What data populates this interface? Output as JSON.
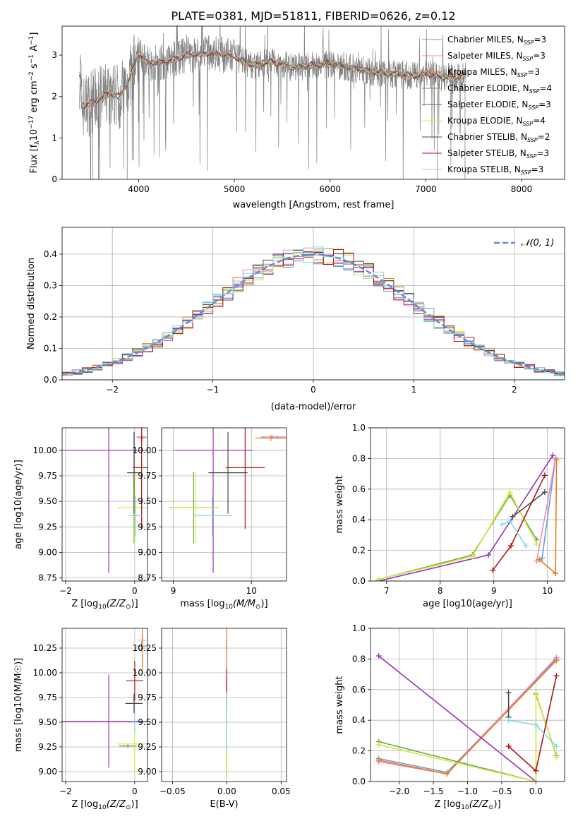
{
  "figure_title": "PLATE=0381, MJD=51811, FIBERID=0626, z=0.12",
  "colors": {
    "chabrier_miles": "#6a9bd8",
    "salpeter_miles": "#e98cb8",
    "kroupa_miles": "#f07a1a",
    "chabrier_elodie": "#6aa84f",
    "salpeter_elodie": "#9b30b8",
    "kroupa_elodie": "#d8e83a",
    "chabrier_stelib": "#4a4a4a",
    "salpeter_stelib": "#b01414",
    "kroupa_stelib": "#86d8e8",
    "data_spectrum": "#808080",
    "normal_curve": "#5b8fd6"
  },
  "chart_data": [
    {
      "id": "spectrum",
      "type": "line",
      "xlabel": "wavelength [Angstrom, rest frame]",
      "ylabel": "Flux [f_λ 10^-17 erg cm^-2 s^-1 A^-1]",
      "xlim": [
        3200,
        8450
      ],
      "ylim": [
        0,
        3.7
      ],
      "xticks": [
        4000,
        5000,
        6000,
        7000,
        8000
      ],
      "yticks": [
        0,
        1,
        2,
        3
      ],
      "legend_position": "top-right",
      "legend": [
        {
          "key": "chabrier_miles",
          "label": "Chabrier MILES, N",
          "sub": "SSP",
          "tail": "=3"
        },
        {
          "key": "salpeter_miles",
          "label": "Salpeter MILES, N",
          "sub": "SSP",
          "tail": "=3"
        },
        {
          "key": "kroupa_miles",
          "label": "Kroupa MILES, N",
          "sub": "SSP",
          "tail": "=3"
        },
        {
          "key": "chabrier_elodie",
          "label": "Chabrier ELODIE, N",
          "sub": "SSP",
          "tail": "=4"
        },
        {
          "key": "salpeter_elodie",
          "label": "Salpeter ELODIE, N",
          "sub": "SSP",
          "tail": "=3"
        },
        {
          "key": "kroupa_elodie",
          "label": "Kroupa ELODIE, N",
          "sub": "SSP",
          "tail": "=4"
        },
        {
          "key": "chabrier_stelib",
          "label": "Chabrier STELIB, N",
          "sub": "SSP",
          "tail": "=2"
        },
        {
          "key": "salpeter_stelib",
          "label": "Salpeter STELIB, N",
          "sub": "SSP",
          "tail": "=3"
        },
        {
          "key": "kroupa_stelib",
          "label": "Kroupa STELIB, N",
          "sub": "SSP",
          "tail": "=3"
        }
      ],
      "continuum_points": [
        [
          3400,
          1.75
        ],
        [
          3600,
          1.95
        ],
        [
          3700,
          2.1
        ],
        [
          3800,
          2.0
        ],
        [
          3900,
          2.4
        ],
        [
          4000,
          3.05
        ],
        [
          4100,
          2.8
        ],
        [
          4300,
          2.85
        ],
        [
          4500,
          3.0
        ],
        [
          4800,
          3.05
        ],
        [
          5000,
          2.95
        ],
        [
          5200,
          2.75
        ],
        [
          5400,
          2.85
        ],
        [
          5600,
          2.7
        ],
        [
          5800,
          2.75
        ],
        [
          6000,
          2.8
        ],
        [
          6300,
          2.65
        ],
        [
          6600,
          2.55
        ],
        [
          6900,
          2.5
        ],
        [
          7000,
          2.55
        ],
        [
          7200,
          2.45
        ],
        [
          7400,
          2.5
        ]
      ]
    },
    {
      "id": "residuals",
      "type": "line",
      "xlabel": "(data-model)/error",
      "ylabel": "Normed distribution",
      "xlim": [
        -2.5,
        2.5
      ],
      "ylim": [
        0,
        0.485
      ],
      "xticks": [
        -2,
        -1,
        0,
        1,
        2
      ],
      "xtick_labels": [
        "−2",
        "−1",
        "0",
        "1",
        "2"
      ],
      "yticks": [
        0.0,
        0.1,
        0.2,
        0.3,
        0.4
      ],
      "ytick_labels": [
        "0.0",
        "0.1",
        "0.2",
        "0.3",
        "0.4"
      ],
      "grid": true,
      "legend_position": "top-right",
      "normal_legend": "𝒩(0, 1)",
      "bin_width": 0.1
    },
    {
      "id": "age_vs_Z",
      "type": "scatter",
      "xlabel_prefix": "Z [log",
      "xlabel_expr": "(Z/Z",
      "xlabel_suffix": ")]",
      "ylabel": "age  [log10(age/yr)]",
      "xlim": [
        -2.1,
        0.37
      ],
      "ylim": [
        8.72,
        10.22
      ],
      "xticks": [
        -2,
        0
      ],
      "xtick_labels": [
        "−2",
        "0"
      ],
      "yticks": [
        8.75,
        9.0,
        9.25,
        9.5,
        9.75,
        10.0
      ],
      "ytick_labels": [
        "8.75",
        "9.00",
        "9.25",
        "9.50",
        "9.75",
        "10.00"
      ],
      "grid": true,
      "points": [
        {
          "key": "chabrier_miles",
          "x": 0.2,
          "xerr": 0.15,
          "y": 10.13,
          "yerr": 0.02
        },
        {
          "key": "salpeter_miles",
          "x": 0.22,
          "xerr": 0.15,
          "y": 10.13,
          "yerr": 0.02
        },
        {
          "key": "kroupa_miles",
          "x": 0.2,
          "xerr": 0.1,
          "y": 10.12,
          "yerr": 0.03
        },
        {
          "key": "chabrier_elodie",
          "x": -0.02,
          "xerr": 0.03,
          "y": 9.44,
          "yerr": 0.35
        },
        {
          "key": "salpeter_elodie",
          "x": -0.75,
          "xerr": 1.35,
          "y": 10.0,
          "yerr": 1.2
        },
        {
          "key": "kroupa_elodie",
          "x": 0.0,
          "xerr": 0.5,
          "y": 9.44,
          "yerr": 0.35
        },
        {
          "key": "chabrier_stelib",
          "x": -0.02,
          "xerr": 0.2,
          "y": 9.78,
          "yerr": 0.4
        },
        {
          "key": "salpeter_stelib",
          "x": 0.2,
          "xerr": 0.25,
          "y": 9.83,
          "yerr": 0.6
        },
        {
          "key": "kroupa_stelib",
          "x": 0.02,
          "xerr": 0.2,
          "y": 9.36,
          "yerr": 0.2
        }
      ]
    },
    {
      "id": "age_vs_mass",
      "type": "scatter",
      "xlabel_prefix": "mass [log",
      "xlabel_expr": "(M/M",
      "xlabel_suffix": ")]",
      "xlim": [
        8.85,
        10.45
      ],
      "ylim": [
        8.72,
        10.22
      ],
      "xticks": [
        9,
        10
      ],
      "xtick_labels": [
        "9",
        "10"
      ],
      "yticks": [
        8.75,
        9.0,
        9.25,
        9.5,
        9.75,
        10.0
      ],
      "ytick_labels": [
        "8.75",
        "9.00",
        "9.25",
        "9.50",
        "9.75",
        "10.00"
      ],
      "grid": true,
      "points": [
        {
          "key": "chabrier_miles",
          "x": 10.27,
          "xerr": 0.15,
          "y": 10.13,
          "yerr": 0.02
        },
        {
          "key": "salpeter_miles",
          "x": 10.33,
          "xerr": 0.15,
          "y": 10.13,
          "yerr": 0.02
        },
        {
          "key": "kroupa_miles",
          "x": 10.25,
          "xerr": 0.2,
          "y": 10.12,
          "yerr": 0.03
        },
        {
          "key": "chabrier_elodie",
          "x": 9.26,
          "xerr": 0.3,
          "y": 9.44,
          "yerr": 0.35
        },
        {
          "key": "salpeter_elodie",
          "x": 9.51,
          "xerr": 0.5,
          "y": 10.0,
          "yerr": 1.2
        },
        {
          "key": "kroupa_elodie",
          "x": 9.28,
          "xerr": 0.3,
          "y": 9.44,
          "yerr": 0.35
        },
        {
          "key": "chabrier_stelib",
          "x": 9.7,
          "xerr": 0.25,
          "y": 9.78,
          "yerr": 0.4
        },
        {
          "key": "salpeter_stelib",
          "x": 9.92,
          "xerr": 0.25,
          "y": 9.83,
          "yerr": 0.6
        },
        {
          "key": "kroupa_stelib",
          "x": 9.5,
          "xerr": 0.25,
          "y": 9.36,
          "yerr": 0.2
        }
      ]
    },
    {
      "id": "weight_vs_age",
      "type": "line",
      "xlabel": "age  [log10(age/yr)]",
      "ylabel": "mass weight",
      "xlim": [
        6.7,
        10.32
      ],
      "ylim": [
        0,
        1.0
      ],
      "xticks": [
        7,
        8,
        9,
        10
      ],
      "xtick_labels": [
        "7",
        "8",
        "9",
        "10"
      ],
      "yticks": [
        0.0,
        0.2,
        0.4,
        0.6,
        0.8,
        1.0
      ],
      "ytick_labels": [
        "0.0",
        "0.2",
        "0.4",
        "0.6",
        "0.8",
        "1.0"
      ],
      "grid": true,
      "series": [
        {
          "key": "chabrier_miles",
          "x": [
            9.9,
            10.15
          ],
          "y": [
            0.15,
            0.8
          ]
        },
        {
          "key": "salpeter_miles",
          "x": [
            9.8,
            10.15
          ],
          "y": [
            0.13,
            0.8
          ]
        },
        {
          "key": "kroupa_miles",
          "x": [
            9.85,
            10.15,
            10.17
          ],
          "y": [
            0.14,
            0.05,
            0.79
          ]
        },
        {
          "key": "chabrier_elodie",
          "x": [
            6.85,
            8.6,
            9.3,
            9.8
          ],
          "y": [
            0.01,
            0.17,
            0.56,
            0.27
          ]
        },
        {
          "key": "salpeter_elodie",
          "x": [
            6.85,
            8.9,
            10.1
          ],
          "y": [
            0.0,
            0.17,
            0.82
          ]
        },
        {
          "key": "kroupa_elodie",
          "x": [
            6.85,
            8.6,
            9.3,
            9.8
          ],
          "y": [
            0.01,
            0.16,
            0.58,
            0.24
          ]
        },
        {
          "key": "chabrier_stelib",
          "x": [
            9.35,
            9.95
          ],
          "y": [
            0.42,
            0.58
          ]
        },
        {
          "key": "salpeter_stelib",
          "x": [
            8.98,
            9.32,
            9.95
          ],
          "y": [
            0.07,
            0.23,
            0.69
          ]
        },
        {
          "key": "kroupa_stelib",
          "x": [
            9.15,
            9.3,
            9.6
          ],
          "y": [
            0.37,
            0.39,
            0.23
          ]
        }
      ]
    },
    {
      "id": "mass_vs_Z",
      "type": "scatter",
      "xlabel_prefix": "Z [log",
      "xlabel_expr": "(Z/Z",
      "xlabel_suffix": ")]",
      "ylabel": "mass [log10(M/M☉)]",
      "xlim": [
        -2.1,
        0.37
      ],
      "ylim": [
        8.9,
        10.45
      ],
      "xticks": [
        -2,
        0
      ],
      "xtick_labels": [
        "−2",
        "0"
      ],
      "yticks": [
        9.0,
        9.25,
        9.5,
        9.75,
        10.0,
        10.25
      ],
      "ytick_labels": [
        "9.00",
        "9.25",
        "9.50",
        "9.75",
        "10.00",
        "10.25"
      ],
      "grid": true,
      "points": [
        {
          "key": "chabrier_miles",
          "x": 0.2,
          "xerr": 0.15,
          "y": 10.27,
          "yerr": 0.05
        },
        {
          "key": "salpeter_miles",
          "x": 0.22,
          "xerr": 0.1,
          "y": 10.33,
          "yerr": 0.05
        },
        {
          "key": "kroupa_miles",
          "x": 0.22,
          "xerr": 0.06,
          "y": 10.25,
          "yerr": 0.25
        },
        {
          "key": "chabrier_elodie",
          "x": -0.2,
          "xerr": 0.25,
          "y": 9.26,
          "yerr": 0.02
        },
        {
          "key": "salpeter_elodie",
          "x": -0.75,
          "xerr": 1.35,
          "y": 9.51,
          "yerr": 0.47
        },
        {
          "key": "kroupa_elodie",
          "x": 0.0,
          "xerr": 0.5,
          "y": 9.28,
          "yerr": 0.3
        },
        {
          "key": "chabrier_stelib",
          "x": -0.02,
          "xerr": 0.25,
          "y": 9.69,
          "yerr": 0.1
        },
        {
          "key": "salpeter_stelib",
          "x": 0.0,
          "xerr": 0.25,
          "y": 9.92,
          "yerr": 0.2
        },
        {
          "key": "kroupa_stelib",
          "x": 0.0,
          "xerr": 0.2,
          "y": 9.5,
          "yerr": 0.1
        }
      ]
    },
    {
      "id": "mass_vs_ebv",
      "type": "scatter",
      "xlabel": "E(B-V)",
      "xlim": [
        -0.06,
        0.055
      ],
      "ylim": [
        8.9,
        10.45
      ],
      "xticks": [
        -0.05,
        0.0,
        0.05
      ],
      "xtick_labels": [
        "−0.05",
        "0.00",
        "0.05"
      ],
      "yticks": [
        9.0,
        9.25,
        9.5,
        9.75,
        10.0,
        10.25
      ],
      "ytick_labels": [
        "9.00",
        "9.25",
        "9.50",
        "9.75",
        "10.00",
        "10.25"
      ],
      "grid": true,
      "points": [
        {
          "key": "chabrier_miles",
          "x": 0.0,
          "xerr": 0.0005,
          "y": 10.27,
          "yerr": 0.05
        },
        {
          "key": "salpeter_miles",
          "x": 0.0,
          "xerr": 0.0005,
          "y": 10.33,
          "yerr": 0.05
        },
        {
          "key": "kroupa_miles",
          "x": 0.0,
          "xerr": 0.0005,
          "y": 10.25,
          "yerr": 0.25
        },
        {
          "key": "chabrier_elodie",
          "x": 0.0,
          "xerr": 0.0005,
          "y": 9.26,
          "yerr": 0.3
        },
        {
          "key": "salpeter_elodie",
          "x": 0.0,
          "xerr": 0.0005,
          "y": 9.51,
          "yerr": 0.47
        },
        {
          "key": "kroupa_elodie",
          "x": 0.0,
          "xerr": 0.0005,
          "y": 9.28,
          "yerr": 0.3
        },
        {
          "key": "chabrier_stelib",
          "x": 0.0,
          "xerr": 0.0005,
          "y": 9.69,
          "yerr": 0.1
        },
        {
          "key": "salpeter_stelib",
          "x": 0.0,
          "xerr": 0.0005,
          "y": 9.92,
          "yerr": 0.12
        },
        {
          "key": "kroupa_stelib",
          "x": 0.0,
          "xerr": 0.0005,
          "y": 9.5,
          "yerr": 0.3
        }
      ]
    },
    {
      "id": "weight_vs_Z",
      "type": "line",
      "xlabel_prefix": "Z [log",
      "xlabel_expr": "(Z/Z",
      "xlabel_suffix": ")]",
      "ylabel": "mass weight",
      "xlim": [
        -2.42,
        0.42
      ],
      "ylim": [
        0,
        1.0
      ],
      "xticks": [
        -2.0,
        -1.5,
        -1.0,
        -0.5,
        0.0
      ],
      "xtick_labels": [
        "−2.0",
        "−1.5",
        "−1.0",
        "−0.5",
        "0.0"
      ],
      "yticks": [
        0.0,
        0.2,
        0.4,
        0.6,
        0.8,
        1.0
      ],
      "ytick_labels": [
        "0.0",
        "0.2",
        "0.4",
        "0.6",
        "0.8",
        "1.0"
      ],
      "grid": true,
      "series": [
        {
          "key": "chabrier_miles",
          "x": [
            -2.3,
            -1.3,
            0.3
          ],
          "y": [
            0.15,
            0.06,
            0.8
          ]
        },
        {
          "key": "salpeter_miles",
          "x": [
            -2.3,
            -1.3,
            0.3
          ],
          "y": [
            0.13,
            0.05,
            0.81
          ]
        },
        {
          "key": "kroupa_miles",
          "x": [
            -2.3,
            -1.3,
            0.3
          ],
          "y": [
            0.14,
            0.05,
            0.79
          ]
        },
        {
          "key": "chabrier_elodie",
          "x": [
            -2.3,
            0.0,
            0.0,
            0.3
          ],
          "y": [
            0.26,
            0.0,
            0.57,
            0.17
          ]
        },
        {
          "key": "salpeter_elodie",
          "x": [
            -2.3,
            0.0
          ],
          "y": [
            0.82,
            0.0
          ]
        },
        {
          "key": "kroupa_elodie",
          "x": [
            -2.3,
            0.0,
            0.0,
            0.3
          ],
          "y": [
            0.24,
            0.0,
            0.58,
            0.16
          ]
        },
        {
          "key": "chabrier_stelib",
          "x": [
            -0.4,
            -0.4
          ],
          "y": [
            0.42,
            0.58
          ]
        },
        {
          "key": "salpeter_stelib",
          "x": [
            -0.4,
            0.0,
            0.3
          ],
          "y": [
            0.23,
            0.07,
            0.69
          ]
        },
        {
          "key": "kroupa_stelib",
          "x": [
            -0.4,
            0.0,
            0.3
          ],
          "y": [
            0.4,
            0.37,
            0.23
          ]
        }
      ]
    }
  ]
}
